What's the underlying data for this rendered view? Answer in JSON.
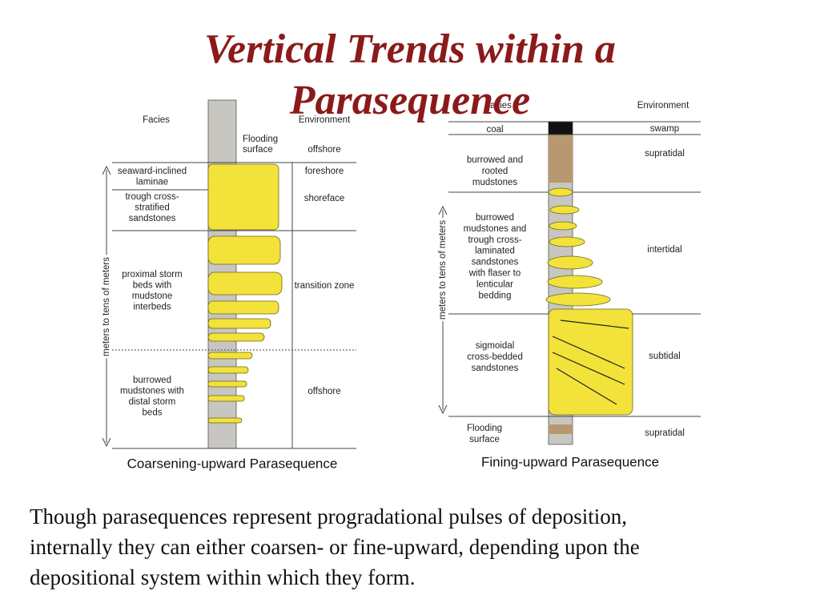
{
  "title": {
    "lines": [
      "Vertical Trends within a",
      "Parasequence"
    ]
  },
  "left_diagram": {
    "facies_header": "Facies",
    "environment_header": "Environment",
    "flooding_surface": [
      "Flooding",
      "surface"
    ],
    "axis_label": "meters to tens of meters",
    "facies": [
      [
        "seaward-inclined",
        "laminae"
      ],
      [
        "trough cross-",
        "stratified",
        "sandstones"
      ],
      [
        "proximal storm",
        "beds with",
        "mudstone",
        "interbeds"
      ],
      [
        "burrowed",
        "mudstones with",
        "distal storm",
        "beds"
      ]
    ],
    "environments": [
      "offshore",
      "foreshore",
      "shoreface",
      "transition zone",
      "offshore"
    ],
    "caption": "Coarsening-upward Parasequence"
  },
  "right_diagram": {
    "facies_header": "Facies",
    "environment_header": "Environment",
    "facies": [
      [
        "coal"
      ],
      [
        "burrowed and",
        "rooted",
        "mudstones"
      ],
      [
        "burrowed",
        "mudstones and",
        "trough cross-",
        "laminated",
        "sandstones",
        "with flaser to",
        "lenticular",
        "bedding"
      ],
      [
        "sigmoidal",
        "cross-bedded",
        "sandstones"
      ]
    ],
    "environments": [
      "swamp",
      "supratidal",
      "intertidal",
      "subtidal",
      "supratidal"
    ],
    "flooding_surface": [
      "Flooding",
      "surface"
    ],
    "axis_label": "meters to tens of meters",
    "caption": "Fining-upward Parasequence"
  },
  "body": {
    "lines": [
      "Though parasequences represent progradational pulses of deposition,",
      "internally they can either coarsen- or fine-upward, depending upon the",
      "depositional system within which they form."
    ]
  }
}
